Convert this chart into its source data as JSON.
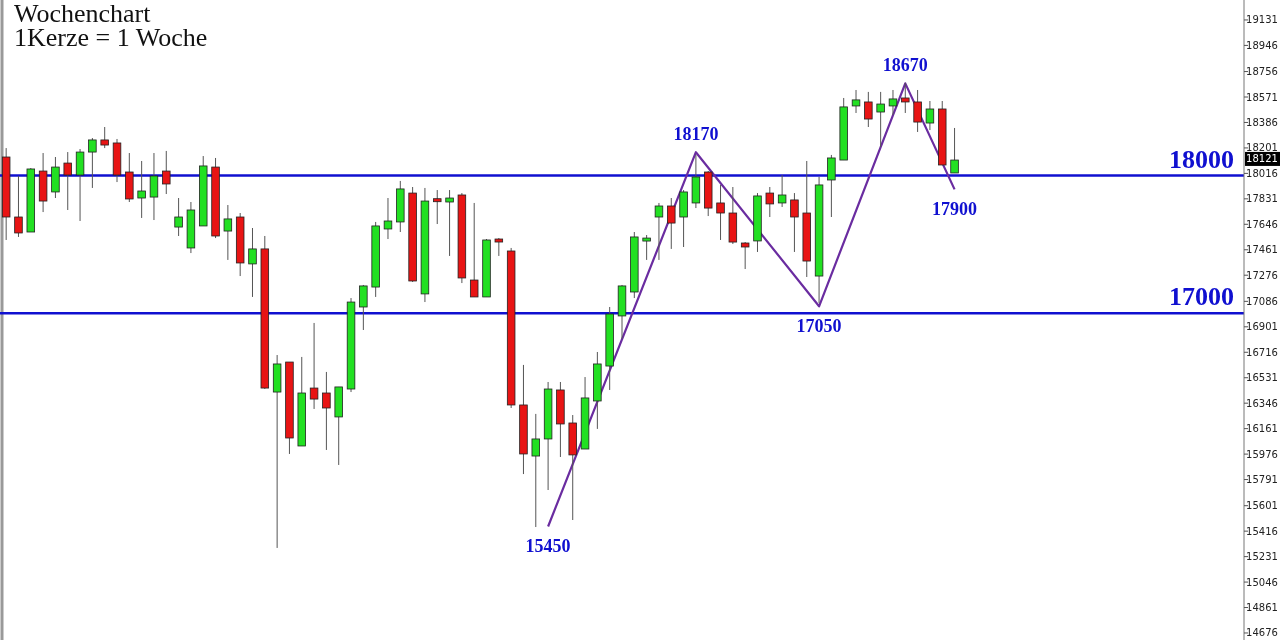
{
  "chart_data": {
    "type": "candlestick",
    "title": "Wochenchart",
    "subtitle": "1Kerze = 1 Woche",
    "categories": [
      null,
      null,
      null,
      null,
      null,
      null,
      null,
      null,
      null,
      null,
      null,
      null,
      null,
      null,
      null,
      null,
      null,
      null,
      null,
      null,
      null,
      null,
      null,
      null,
      null,
      null,
      null,
      null,
      null,
      null,
      null,
      null,
      null,
      null,
      null,
      null,
      null,
      null,
      null,
      null,
      null,
      null,
      null,
      null,
      null,
      null,
      null,
      null,
      null,
      null,
      null,
      null,
      null,
      null,
      null,
      null,
      null,
      null,
      null,
      null,
      null,
      null,
      null,
      null,
      null,
      null,
      null,
      null,
      null,
      null,
      null,
      null,
      null,
      null,
      null,
      null,
      null,
      null,
      null,
      null,
      null,
      null,
      null,
      null,
      null,
      null,
      null,
      null,
      null,
      null,
      null,
      null,
      null,
      null,
      null,
      null,
      null,
      null,
      null,
      null,
      null
    ],
    "ohlc": [
      [
        18135,
        18200,
        17532,
        17699
      ],
      [
        17699,
        17997,
        17554,
        17583
      ],
      [
        17590,
        18055,
        17590,
        18048
      ],
      [
        18033,
        18164,
        17735,
        17815
      ],
      [
        17881,
        18135,
        17837,
        18062
      ],
      [
        18091,
        18171,
        17750,
        18004
      ],
      [
        18004,
        18193,
        17670,
        18171
      ],
      [
        18171,
        18273,
        17910,
        18259
      ],
      [
        18259,
        18353,
        18200,
        18222
      ],
      [
        18237,
        18266,
        17953,
        18004
      ],
      [
        18026,
        18164,
        17808,
        17830
      ],
      [
        17837,
        18106,
        17692,
        17888
      ],
      [
        17844,
        18164,
        17677,
        17997
      ],
      [
        18033,
        18179,
        17866,
        17939
      ],
      [
        17626,
        17837,
        17561,
        17699
      ],
      [
        17474,
        17808,
        17437,
        17750
      ],
      [
        17634,
        18142,
        17634,
        18070
      ],
      [
        18062,
        18128,
        17546,
        17561
      ],
      [
        17597,
        17786,
        17387,
        17685
      ],
      [
        17699,
        17728,
        17270,
        17365
      ],
      [
        17358,
        17619,
        17118,
        17467
      ],
      [
        17467,
        17561,
        16449,
        16456
      ],
      [
        16427,
        16696,
        15294,
        16631
      ],
      [
        16645,
        16645,
        15977,
        16093
      ],
      [
        16035,
        16682,
        16035,
        16420
      ],
      [
        16456,
        16929,
        16304,
        16376
      ],
      [
        16420,
        16573,
        16006,
        16311
      ],
      [
        16246,
        16464,
        15897,
        16464
      ],
      [
        16449,
        17110,
        16427,
        17081
      ],
      [
        17045,
        17205,
        16878,
        17198
      ],
      [
        17190,
        17663,
        17118,
        17634
      ],
      [
        17612,
        17837,
        17539,
        17670
      ],
      [
        17663,
        17961,
        17590,
        17903
      ],
      [
        17873,
        17917,
        17227,
        17234
      ],
      [
        17140,
        17910,
        17081,
        17815
      ],
      [
        17832,
        17895,
        17648,
        17825
      ],
      [
        17808,
        17895,
        17416,
        17837
      ],
      [
        17859,
        17873,
        17219,
        17256
      ],
      [
        17241,
        17801,
        17118,
        17118
      ],
      [
        17118,
        17539,
        17118,
        17532
      ],
      [
        17539,
        17546,
        17416,
        17535
      ],
      [
        17452,
        17474,
        16311,
        16333
      ],
      [
        16333,
        16624,
        15831,
        15977
      ],
      [
        15962,
        16268,
        15446,
        16086
      ],
      [
        16086,
        16500,
        15715,
        16449
      ],
      [
        16442,
        16500,
        15955,
        16195
      ],
      [
        16202,
        16260,
        15497,
        15970
      ],
      [
        16013,
        16536,
        16013,
        16384
      ],
      [
        16362,
        16718,
        16159,
        16631
      ],
      [
        16616,
        17045,
        16442,
        16994
      ],
      [
        16980,
        17205,
        16813,
        17198
      ],
      [
        17154,
        17590,
        17110,
        17554
      ],
      [
        17539,
        17568,
        17387,
        17546
      ],
      [
        17699,
        17801,
        17387,
        17779
      ],
      [
        17779,
        17837,
        17467,
        17655
      ],
      [
        17699,
        17895,
        17481,
        17881
      ],
      [
        17801,
        18150,
        17764,
        17990
      ],
      [
        18026,
        18033,
        17706,
        17764
      ],
      [
        17801,
        17932,
        17532,
        17728
      ],
      [
        17728,
        17917,
        17503,
        17517
      ],
      [
        17510,
        17517,
        17321,
        17481
      ],
      [
        17525,
        17873,
        17445,
        17852
      ],
      [
        17873,
        17917,
        17699,
        17794
      ],
      [
        17801,
        18004,
        17772,
        17859
      ],
      [
        17823,
        17873,
        17445,
        17699
      ],
      [
        17728,
        18106,
        17263,
        17379
      ],
      [
        17270,
        17990,
        17074,
        17932
      ],
      [
        17968,
        18150,
        17699,
        18128
      ],
      [
        18113,
        18564,
        18113,
        18499
      ],
      [
        18506,
        18622,
        18455,
        18550
      ],
      [
        18535,
        18608,
        18353,
        18411
      ],
      [
        18462,
        18608,
        18208,
        18520
      ],
      [
        18506,
        18622,
        18440,
        18557
      ],
      [
        18564,
        18673,
        18455,
        18535
      ],
      [
        18535,
        18622,
        18317,
        18389
      ],
      [
        18382,
        18542,
        18331,
        18484
      ],
      [
        18484,
        18542,
        18077,
        18077
      ],
      [
        18019,
        18346,
        18019,
        18113
      ],
      null,
      null,
      null,
      null,
      null,
      null,
      null,
      null,
      null,
      null,
      null,
      null,
      null,
      null,
      null,
      null,
      null,
      null,
      null,
      null,
      null,
      null,
      null
    ],
    "colors": [
      "#e81414",
      "#e81414",
      "#22e022",
      "#e81414",
      "#22e022",
      "#e81414",
      "#22e022",
      "#22e022",
      "#e81414",
      "#e81414",
      "#e81414",
      "#22e022",
      "#22e022",
      "#e81414",
      "#22e022",
      "#22e022",
      "#22e022",
      "#e81414",
      "#22e022",
      "#e81414",
      "#22e022",
      "#e81414",
      "#22e022",
      "#e81414",
      "#22e022",
      "#e81414",
      "#e81414",
      "#22e022",
      "#22e022",
      "#22e022",
      "#22e022",
      "#22e022",
      "#22e022",
      "#e81414",
      "#22e022",
      "#e81414",
      "#22e022",
      "#e81414",
      "#e81414",
      "#22e022",
      "#e81414",
      "#e81414",
      "#e81414",
      "#22e022",
      "#22e022",
      "#e81414",
      "#e81414",
      "#22e022",
      "#22e022",
      "#22e022",
      "#22e022",
      "#22e022",
      "#22e022",
      "#22e022",
      "#e81414",
      "#22e022",
      "#22e022",
      "#e81414",
      "#e81414",
      "#e81414",
      "#e81414",
      "#22e022",
      "#e81414",
      "#22e022",
      "#e81414",
      "#e81414",
      "#22e022",
      "#22e022",
      "#22e022",
      "#22e022",
      "#e81414",
      "#22e022",
      "#22e022",
      "#e81414",
      "#e81414",
      "#22e022",
      "#e81414",
      "#22e022",
      null,
      null,
      null,
      null,
      null,
      null,
      null,
      null,
      null,
      null,
      null,
      null,
      null,
      null,
      null,
      null,
      null,
      null,
      null,
      null,
      null,
      null,
      null
    ],
    "series": [
      {
        "type": "line",
        "color": "#6a2ca0",
        "values": [
          null,
          null,
          null,
          null,
          null,
          null,
          null,
          null,
          null,
          null,
          null,
          null,
          null,
          null,
          null,
          null,
          null,
          null,
          null,
          null,
          null,
          null,
          null,
          null,
          null,
          null,
          null,
          null,
          null,
          null,
          null,
          null,
          null,
          null,
          null,
          null,
          null,
          null,
          null,
          null,
          null,
          null,
          null,
          null,
          15450,
          null,
          null,
          null,
          null,
          null,
          null,
          null,
          null,
          null,
          null,
          null,
          18170,
          null,
          null,
          null,
          null,
          null,
          null,
          null,
          null,
          null,
          17050,
          null,
          null,
          null,
          null,
          null,
          null,
          18670,
          null,
          null,
          null,
          17900,
          null,
          null,
          null,
          null,
          null,
          null,
          null,
          null,
          null,
          null,
          null,
          null,
          null,
          null,
          null,
          null,
          null,
          null,
          null,
          null,
          null,
          null,
          null
        ]
      }
    ],
    "ylim": [
      14625,
      19276
    ],
    "yticks": [
      19131,
      18946,
      18756,
      18571,
      18386,
      18201,
      18016,
      17831,
      17646,
      17461,
      17276,
      17086,
      16901,
      16716,
      16531,
      16346,
      16161,
      15976,
      15791,
      15601,
      15416,
      15231,
      15046,
      14861,
      14676
    ],
    "tick_labels": "y",
    "ref_lines": [
      {
        "axis": "y",
        "value": 18000,
        "label": "18000",
        "color": "#1010d0"
      },
      {
        "axis": "y",
        "value": 17000,
        "label": "17000",
        "color": "#1010d0"
      }
    ],
    "annotations": [
      {
        "text": "15450",
        "y": 15450
      },
      {
        "text": "18170",
        "y": 18170
      },
      {
        "text": "17050",
        "y": 17050
      },
      {
        "text": "18670",
        "y": 18670
      },
      {
        "text": "17900",
        "y": 17900
      },
      {
        "text": "18121",
        "y": 18121
      }
    ],
    "grid": false
  }
}
